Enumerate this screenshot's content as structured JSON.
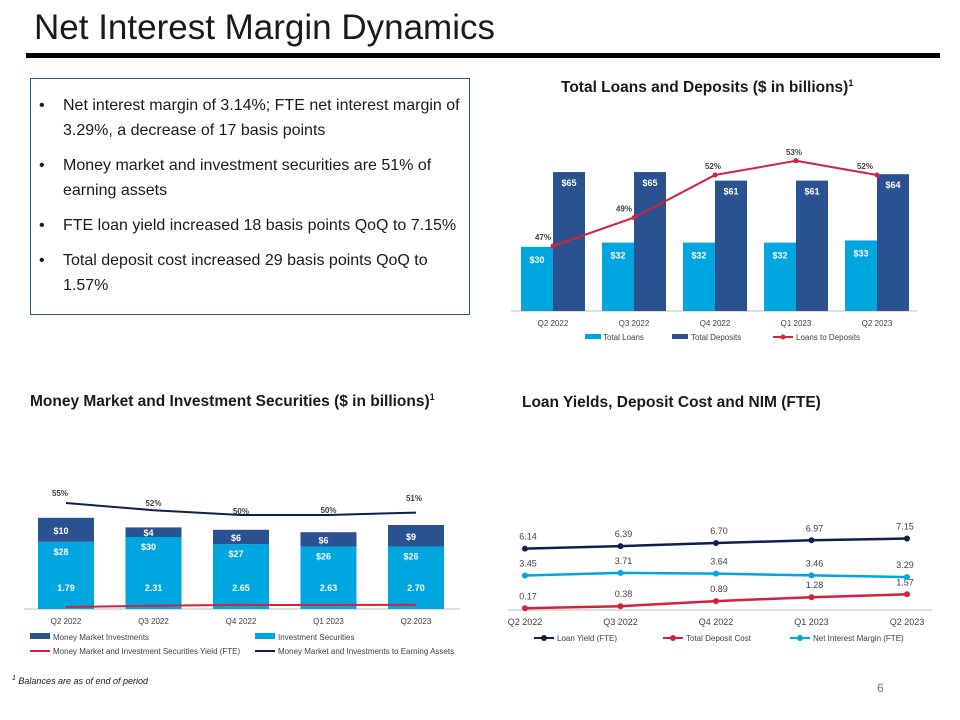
{
  "page": {
    "title": "Net Interest Margin Dynamics",
    "footnote_mark": "1",
    "footnote": "Balances are as of end of period",
    "page_number": "6"
  },
  "colors": {
    "light_blue": "#00a6e0",
    "dark_blue": "#2b5290",
    "red": "#d4213d",
    "navy": "#0c1f4d"
  },
  "bullets": [
    "Net interest margin of 3.14%; FTE net interest margin of 3.29%, a decrease of 17 basis points",
    "Money market and investment securities are 51% of earning assets",
    "FTE loan yield increased 18 basis points QoQ to 7.15%",
    "Total deposit cost increased 29 basis points QoQ to 1.57%"
  ],
  "chart_data": [
    {
      "id": "loans_deposits",
      "type": "bar",
      "title": "Total Loans and Deposits ($ in billions)",
      "title_sup": "1",
      "categories": [
        "Q2 2022",
        "Q3 2022",
        "Q4 2022",
        "Q1 2023",
        "Q2 2023"
      ],
      "series": [
        {
          "name": "Total Loans",
          "values": [
            30,
            32,
            32,
            32,
            33
          ],
          "labels": [
            "$30",
            "$32",
            "$32",
            "$32",
            "$33"
          ]
        },
        {
          "name": "Total Deposits",
          "values": [
            65,
            65,
            61,
            61,
            64
          ],
          "labels": [
            "$65",
            "$65",
            "$61",
            "$61",
            "$64"
          ]
        }
      ],
      "line": {
        "name": "Loans to Deposits",
        "values": [
          47,
          49,
          52,
          53,
          52
        ],
        "labels": [
          "47%",
          "49%",
          "52%",
          "53%",
          "52%"
        ]
      },
      "ylim": [
        0,
        80
      ]
    },
    {
      "id": "mm_investments",
      "type": "bar",
      "title": "Money Market and Investment Securities ($ in billions)",
      "title_sup": "1",
      "categories": [
        "Q2 2022",
        "Q3 2022",
        "Q4 2022",
        "Q1 2023",
        "Q2 2023"
      ],
      "series": [
        {
          "name": "Money Market Investments",
          "values": [
            10,
            4,
            6,
            6,
            9
          ],
          "labels": [
            "$10",
            "$4",
            "$6",
            "$6",
            "$9"
          ]
        },
        {
          "name": "Investment Securities",
          "values": [
            28,
            30,
            27,
            26,
            26
          ],
          "labels": [
            "$28",
            "$30",
            "$27",
            "$26",
            "$26"
          ]
        }
      ],
      "lines": [
        {
          "name": "Money Market and Investment Securities Yield (FTE)",
          "values": [
            1.79,
            2.31,
            2.65,
            2.63,
            2.7
          ],
          "labels": [
            "1.79",
            "2.31",
            "2.65",
            "2.63",
            "2.70"
          ]
        },
        {
          "name": "Money Market and Investments to Earning Assets",
          "values": [
            55,
            52,
            50,
            50,
            51
          ],
          "labels": [
            "55%",
            "52%",
            "50%",
            "50%",
            "51%"
          ]
        }
      ],
      "ylim": [
        0,
        40
      ]
    },
    {
      "id": "yields",
      "type": "line",
      "title": "Loan Yields, Deposit Cost and NIM (FTE)",
      "categories": [
        "Q2 2022",
        "Q3 2022",
        "Q4 2022",
        "Q1 2023",
        "Q2 2023"
      ],
      "series": [
        {
          "name": "Loan Yield (FTE)",
          "values": [
            6.14,
            6.39,
            6.7,
            6.97,
            7.15
          ],
          "labels": [
            "6.14",
            "6.39",
            "6.70",
            "6.97",
            "7.15"
          ]
        },
        {
          "name": "Total Deposit Cost",
          "values": [
            0.17,
            0.38,
            0.89,
            1.28,
            1.57
          ],
          "labels": [
            "0.17",
            "0.38",
            "0.89",
            "1.28",
            "1.57"
          ]
        },
        {
          "name": "Net Interest Margin (FTE)",
          "values": [
            3.45,
            3.71,
            3.64,
            3.46,
            3.29
          ],
          "labels": [
            "3.45",
            "3.71",
            "3.64",
            "3.46",
            "3.29"
          ]
        }
      ]
    }
  ]
}
